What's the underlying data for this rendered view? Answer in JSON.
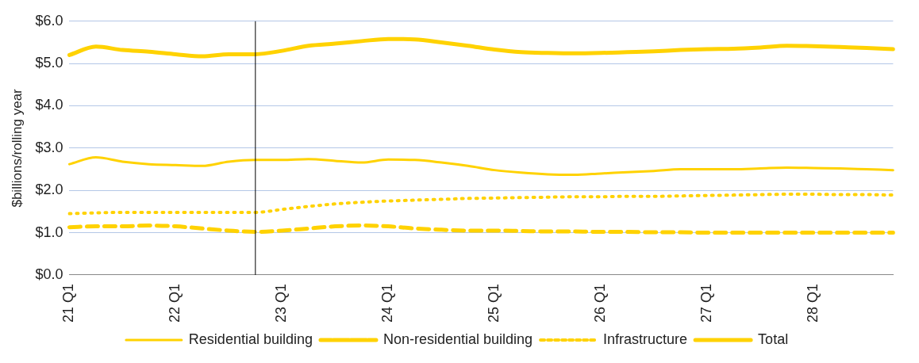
{
  "chart_data": {
    "type": "line",
    "ylabel": "$billions/rolling year",
    "categories": [
      "21 Q1",
      null,
      null,
      null,
      "22 Q1",
      null,
      null,
      null,
      "23 Q1",
      null,
      null,
      null,
      "24 Q1",
      null,
      null,
      null,
      "25 Q1",
      null,
      null,
      null,
      "26 Q1",
      null,
      null,
      null,
      "27 Q1",
      null,
      null,
      null,
      "28 Q1",
      null,
      null,
      null
    ],
    "series": [
      {
        "name": "Residential building",
        "color": "#ffd200",
        "line_style": "solid",
        "values": [
          2.62,
          2.78,
          2.68,
          2.62,
          2.6,
          2.58,
          2.68,
          2.72,
          2.72,
          2.74,
          2.7,
          2.66,
          2.73,
          2.72,
          2.66,
          2.58,
          2.48,
          2.42,
          2.38,
          2.37,
          2.4,
          2.43,
          2.46,
          2.5,
          2.5,
          2.5,
          2.52,
          2.54,
          2.53,
          2.52,
          2.5,
          2.48
        ]
      },
      {
        "name": "Non-residential building",
        "color": "#ffd200",
        "line_style": "dashed",
        "values": [
          1.13,
          1.15,
          1.15,
          1.17,
          1.15,
          1.1,
          1.05,
          1.02,
          1.05,
          1.1,
          1.15,
          1.17,
          1.15,
          1.1,
          1.07,
          1.05,
          1.05,
          1.04,
          1.03,
          1.03,
          1.02,
          1.02,
          1.01,
          1.01,
          1.0,
          1.0,
          1.0,
          1.0,
          1.0,
          1.0,
          1.0,
          1.0
        ]
      },
      {
        "name": "Infrastructure",
        "color": "#ffd200",
        "line_style": "dotted",
        "values": [
          1.45,
          1.47,
          1.48,
          1.48,
          1.48,
          1.48,
          1.48,
          1.48,
          1.55,
          1.62,
          1.68,
          1.72,
          1.75,
          1.77,
          1.79,
          1.81,
          1.82,
          1.83,
          1.84,
          1.85,
          1.85,
          1.86,
          1.86,
          1.87,
          1.88,
          1.89,
          1.9,
          1.91,
          1.91,
          1.9,
          1.9,
          1.89
        ]
      },
      {
        "name": "Total",
        "color": "#ffd200",
        "line_style": "solid",
        "values": [
          5.2,
          5.4,
          5.32,
          5.28,
          5.22,
          5.17,
          5.22,
          5.22,
          5.3,
          5.42,
          5.47,
          5.53,
          5.58,
          5.57,
          5.5,
          5.42,
          5.33,
          5.27,
          5.25,
          5.24,
          5.25,
          5.27,
          5.29,
          5.32,
          5.34,
          5.35,
          5.38,
          5.42,
          5.41,
          5.39,
          5.37,
          5.34
        ]
      }
    ],
    "ylim": [
      0,
      6
    ],
    "yticks": [
      {
        "value": 0,
        "label": "$0.0"
      },
      {
        "value": 1,
        "label": "$1.0"
      },
      {
        "value": 2,
        "label": "$2.0"
      },
      {
        "value": 3,
        "label": "$3.0"
      },
      {
        "value": 4,
        "label": "$4.0"
      },
      {
        "value": 5,
        "label": "$5.0"
      },
      {
        "value": 6,
        "label": "$6.0"
      }
    ],
    "grid": "y",
    "legend": "bottom",
    "marker": "none"
  }
}
